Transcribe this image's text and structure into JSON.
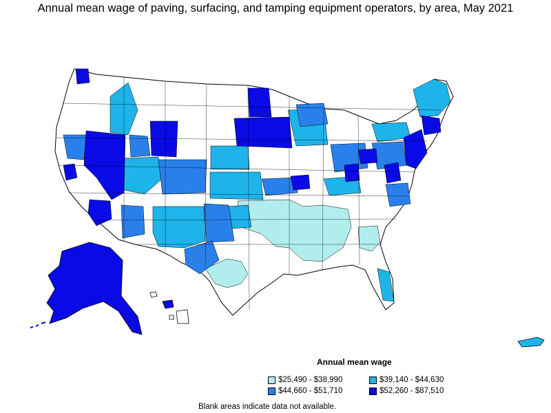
{
  "title": "Annual mean wage of paving, surfacing, and tamping equipment operators, by area, May 2021",
  "legend": {
    "title": "Annual mean wage",
    "items": [
      {
        "label": "$25,490 - $38,990",
        "color": "#b2eded"
      },
      {
        "label": "$39,140 - $44,630",
        "color": "#1eb4ea"
      },
      {
        "label": "$44,660 - $51,710",
        "color": "#2a80eb"
      },
      {
        "label": "$52,260 - $87,510",
        "color": "#0a0ae6"
      }
    ]
  },
  "footnote": "Blank areas indicate data not available.",
  "colors": {
    "no_data": "#ffffff",
    "border": "#000000"
  }
}
